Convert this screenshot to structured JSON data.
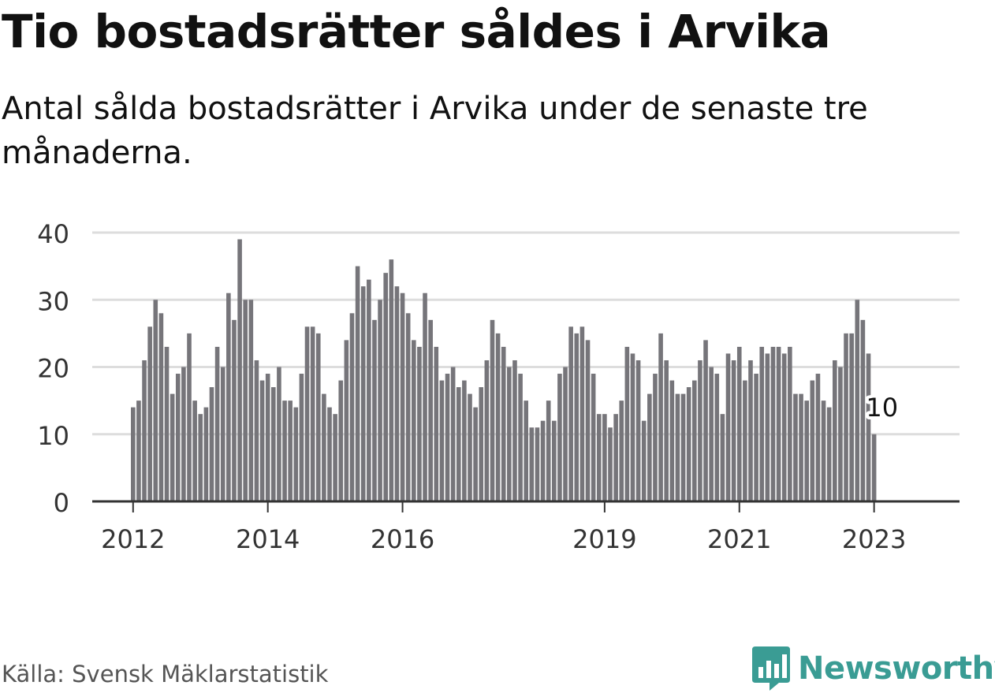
{
  "title": "Tio bostadsrätter såldes i Arvika",
  "subtitle": "Antal sålda bostadsrätter i Arvika under de senaste tre månaderna.",
  "source": "Källa: Svensk Mäklarstatistik",
  "brand": {
    "name": "Newsworthy",
    "icon": "newsworthy-logo-icon",
    "color": "#3a9c94"
  },
  "colors": {
    "bar": "#76757a",
    "highlight": "#1b9e95",
    "grid": "#dddddd",
    "axis": "#333333"
  },
  "chart_data": {
    "type": "bar",
    "title": "Tio bostadsrätter såldes i Arvika",
    "subtitle": "Antal sålda bostadsrätter i Arvika under de senaste tre månaderna.",
    "xlabel": "",
    "ylabel": "",
    "ylim": [
      0,
      40
    ],
    "yticks": [
      0,
      10,
      20,
      30,
      40
    ],
    "grid": true,
    "legend": "none",
    "x_start": "2012-01",
    "x_end": "2023-02",
    "xticks": [
      {
        "date": "2012-01",
        "label": "2012"
      },
      {
        "date": "2014-01",
        "label": "2014"
      },
      {
        "date": "2016-01",
        "label": "2016"
      },
      {
        "date": "2019-01",
        "label": "2019"
      },
      {
        "date": "2021-01",
        "label": "2021"
      },
      {
        "date": "2023-01",
        "label": "2023"
      }
    ],
    "highlight": {
      "date": "2023-02",
      "value": 10,
      "label": "10"
    },
    "values": [
      14,
      15,
      21,
      26,
      30,
      28,
      23,
      16,
      19,
      20,
      25,
      15,
      13,
      14,
      17,
      23,
      20,
      31,
      27,
      39,
      30,
      30,
      21,
      18,
      19,
      17,
      20,
      15,
      15,
      14,
      19,
      26,
      26,
      25,
      16,
      14,
      13,
      18,
      24,
      28,
      35,
      32,
      33,
      27,
      30,
      34,
      36,
      32,
      31,
      28,
      24,
      23,
      31,
      27,
      23,
      18,
      19,
      20,
      17,
      18,
      16,
      14,
      17,
      21,
      27,
      25,
      23,
      20,
      21,
      19,
      15,
      11,
      11,
      12,
      15,
      12,
      19,
      20,
      26,
      25,
      26,
      24,
      19,
      13,
      13,
      11,
      13,
      15,
      23,
      22,
      21,
      12,
      16,
      19,
      25,
      21,
      18,
      16,
      16,
      17,
      18,
      21,
      24,
      20,
      19,
      13,
      22,
      21,
      23,
      18,
      21,
      19,
      23,
      22,
      23,
      23,
      22,
      23,
      16,
      16,
      15,
      18,
      19,
      15,
      14,
      21,
      20,
      25,
      25,
      30,
      27,
      22,
      10
    ]
  }
}
